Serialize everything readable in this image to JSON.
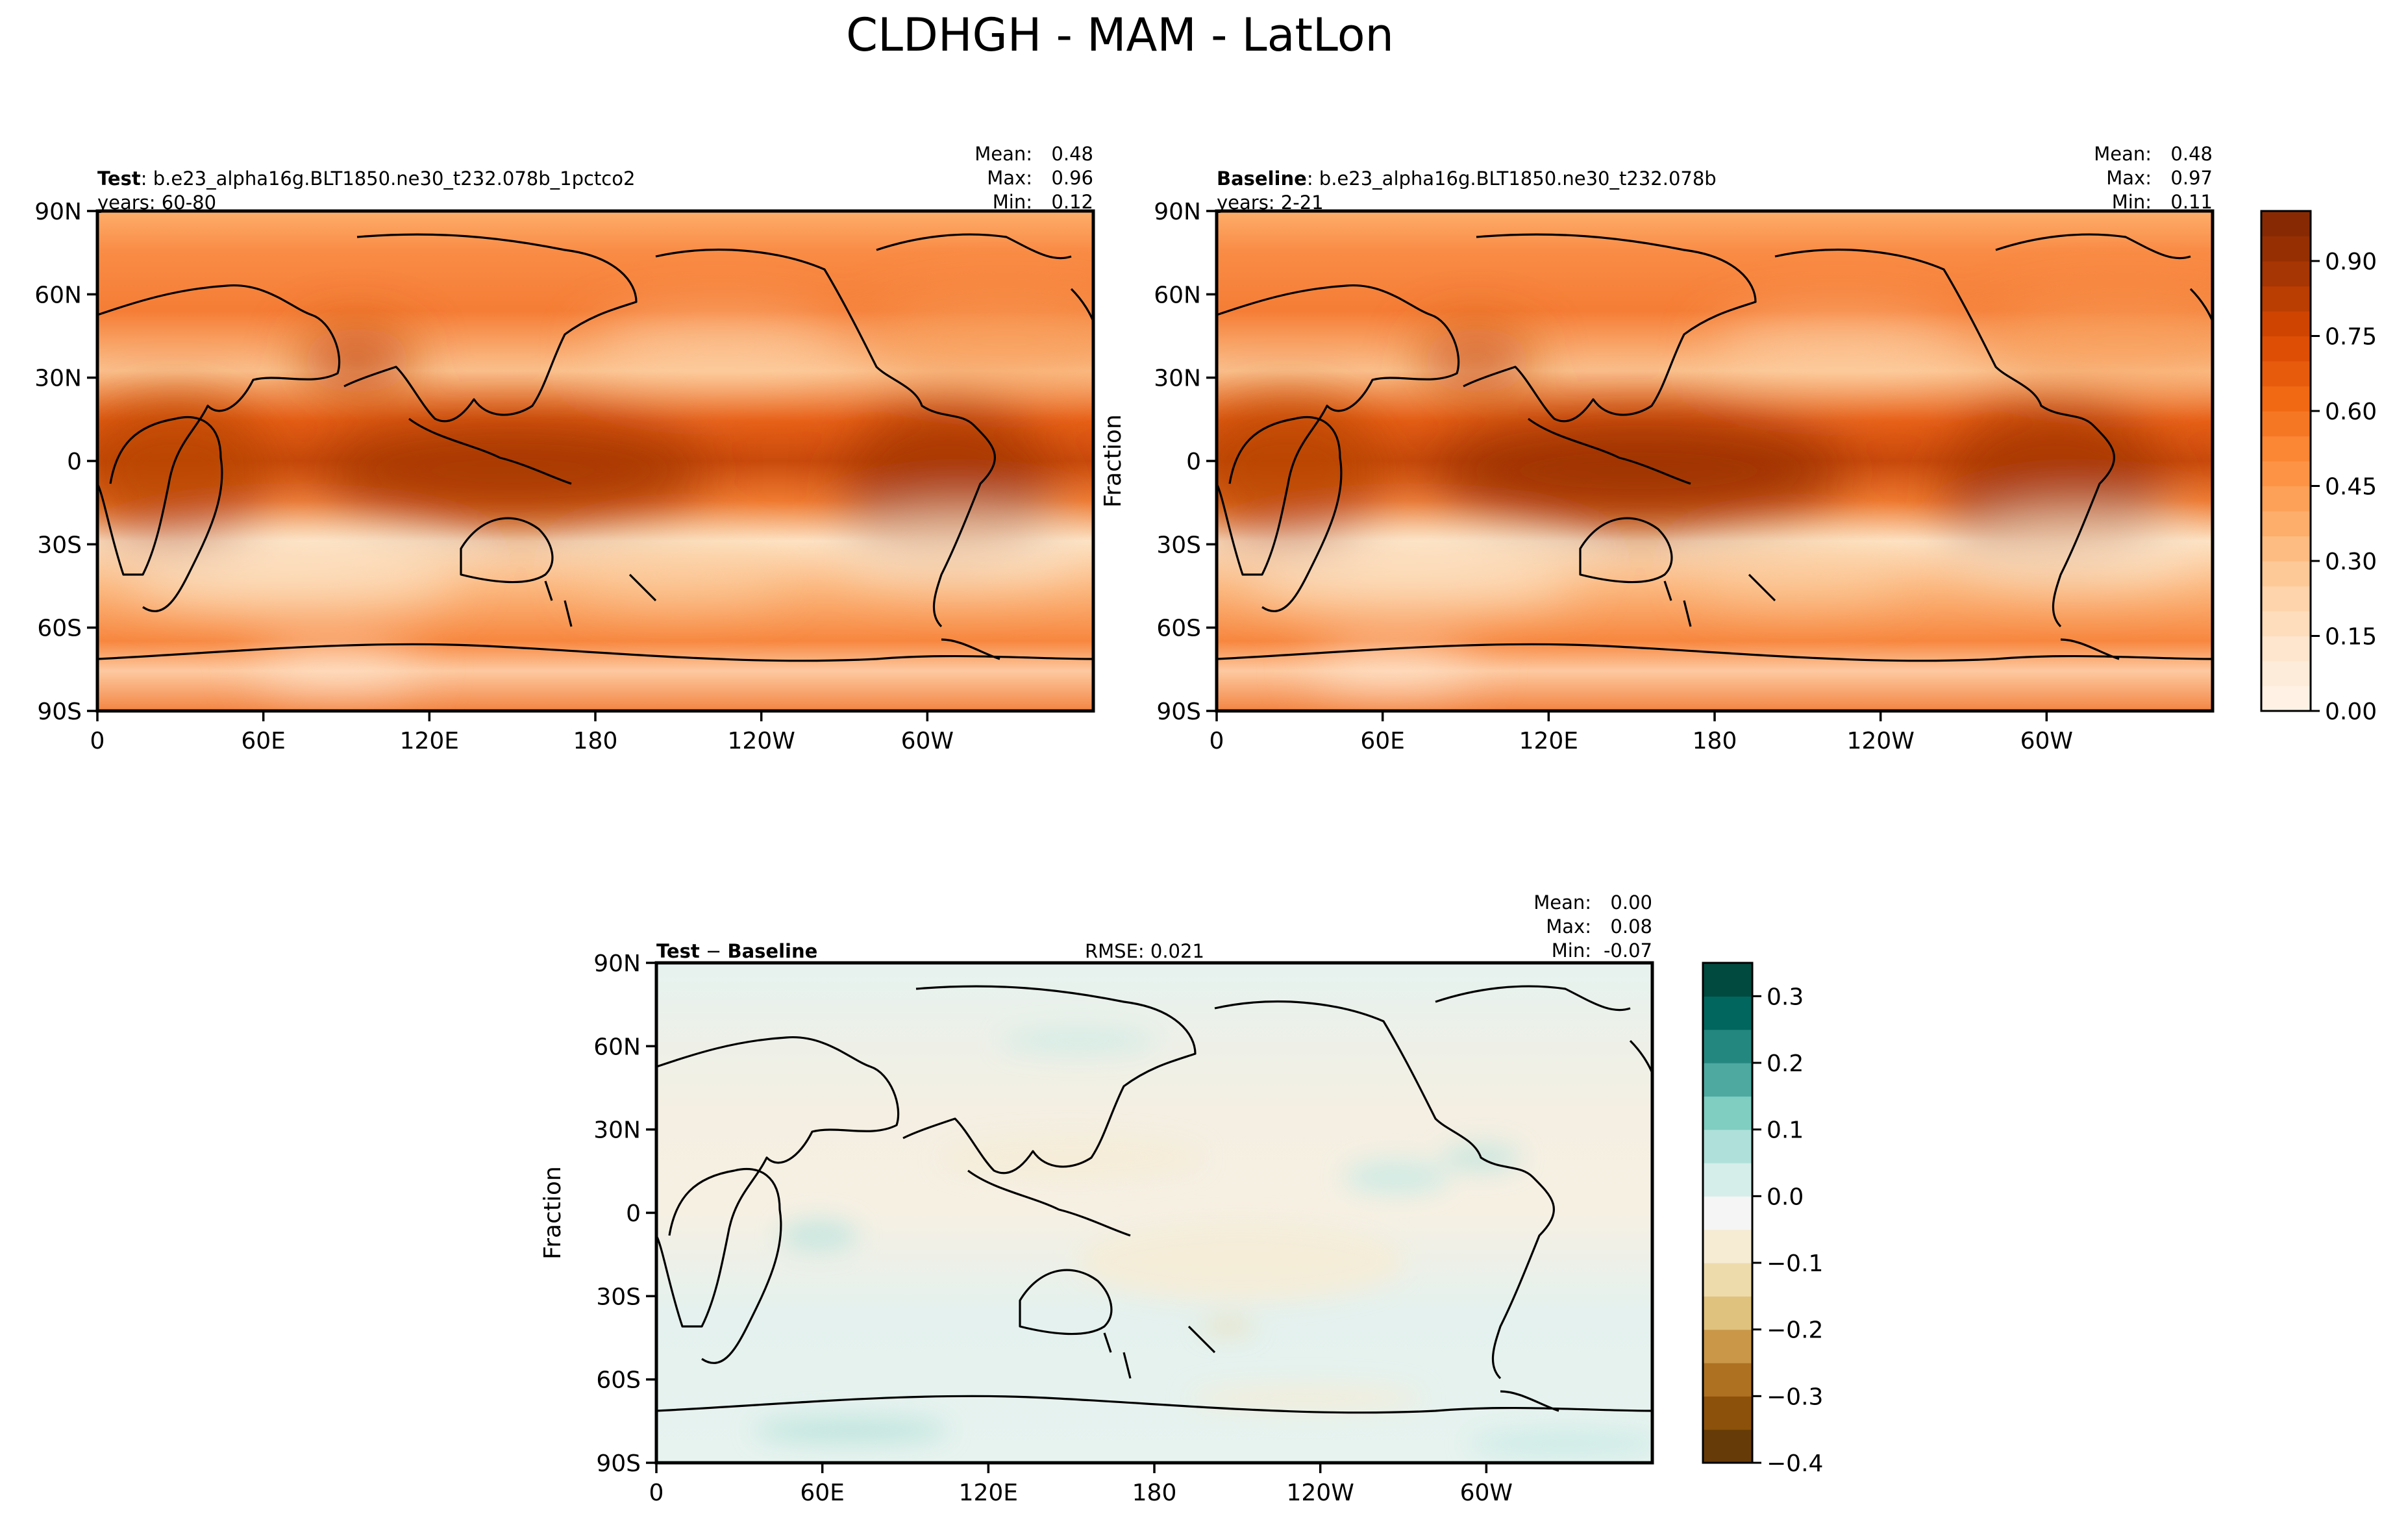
{
  "figure": {
    "title": "CLDHGH - MAM - LatLon"
  },
  "chart_data": [
    {
      "type": "heatmap",
      "panel": "test",
      "label_bold": "Test",
      "label_text": ": b.e23_alpha16g.BLT1850.ne30_t232.078b_1pctco2",
      "years_text": "years: 60-80",
      "stats": [
        {
          "label": "Mean:",
          "value": "0.48"
        },
        {
          "label": "Max:",
          "value": "0.96"
        },
        {
          "label": "Min:",
          "value": "0.12"
        }
      ],
      "ylabel": "",
      "x_ticks": [
        "0",
        "60E",
        "120E",
        "180",
        "120W",
        "60W"
      ],
      "y_ticks": [
        "90N",
        "60N",
        "30N",
        "0",
        "30S",
        "60S",
        "90S"
      ],
      "xlim": [
        0,
        360
      ],
      "ylim": [
        -90,
        90
      ],
      "colormap": "Oranges",
      "field_range": [
        0.12,
        0.96
      ]
    },
    {
      "type": "heatmap",
      "panel": "baseline",
      "label_bold": "Baseline",
      "label_text": ": b.e23_alpha16g.BLT1850.ne30_t232.078b",
      "years_text": "years: 2-21",
      "stats": [
        {
          "label": "Mean:",
          "value": "0.48"
        },
        {
          "label": "Max:",
          "value": "0.97"
        },
        {
          "label": "Min:",
          "value": "0.11"
        }
      ],
      "ylabel": "Fraction",
      "x_ticks": [
        "0",
        "60E",
        "120E",
        "180",
        "120W",
        "60W"
      ],
      "y_ticks": [
        "90N",
        "60N",
        "30N",
        "0",
        "30S",
        "60S",
        "90S"
      ],
      "xlim": [
        0,
        360
      ],
      "ylim": [
        -90,
        90
      ],
      "colormap": "Oranges",
      "field_range": [
        0.11,
        0.97
      ],
      "colorbar": {
        "ticks": [
          "0.00",
          "0.15",
          "0.30",
          "0.45",
          "0.60",
          "0.75",
          "0.90"
        ],
        "tick_values": [
          0,
          0.15,
          0.3,
          0.45,
          0.6,
          0.75,
          0.9
        ],
        "range": [
          0,
          1.0
        ],
        "levels": 20,
        "colors": [
          "#fff5eb",
          "#fee6ce",
          "#fdd0a2",
          "#fdae6b",
          "#fd8d3c",
          "#f16913",
          "#d94801",
          "#a63603",
          "#7f2704"
        ]
      }
    },
    {
      "type": "heatmap",
      "panel": "difference",
      "label_bold_left": "Test",
      "label_minus": " − ",
      "label_bold_right": "Baseline",
      "rmse_text": "RMSE: 0.021",
      "stats": [
        {
          "label": "Mean:",
          "value": "0.00"
        },
        {
          "label": "Max:",
          "value": "0.08"
        },
        {
          "label": "Min:",
          "value": "-0.07"
        }
      ],
      "ylabel": "Fraction",
      "x_ticks": [
        "0",
        "60E",
        "120E",
        "180",
        "120W",
        "60W"
      ],
      "y_ticks": [
        "90N",
        "60N",
        "30N",
        "0",
        "30S",
        "60S",
        "90S"
      ],
      "xlim": [
        0,
        360
      ],
      "ylim": [
        -90,
        90
      ],
      "colormap": "BrBG",
      "field_range": [
        -0.07,
        0.08
      ],
      "colorbar": {
        "ticks": [
          "−0.4",
          "−0.3",
          "−0.2",
          "−0.1",
          "0.0",
          "0.1",
          "0.2",
          "0.3"
        ],
        "tick_values": [
          -0.4,
          -0.3,
          -0.2,
          -0.1,
          0.0,
          0.1,
          0.2,
          0.3
        ],
        "range": [
          -0.4,
          0.35
        ],
        "levels": 15,
        "colors": [
          "#543005",
          "#8c510a",
          "#bf812d",
          "#dfc27d",
          "#f6e8c3",
          "#f5f5f5",
          "#c7eae5",
          "#80cdc1",
          "#35978f",
          "#01665e",
          "#003c30"
        ]
      }
    }
  ]
}
